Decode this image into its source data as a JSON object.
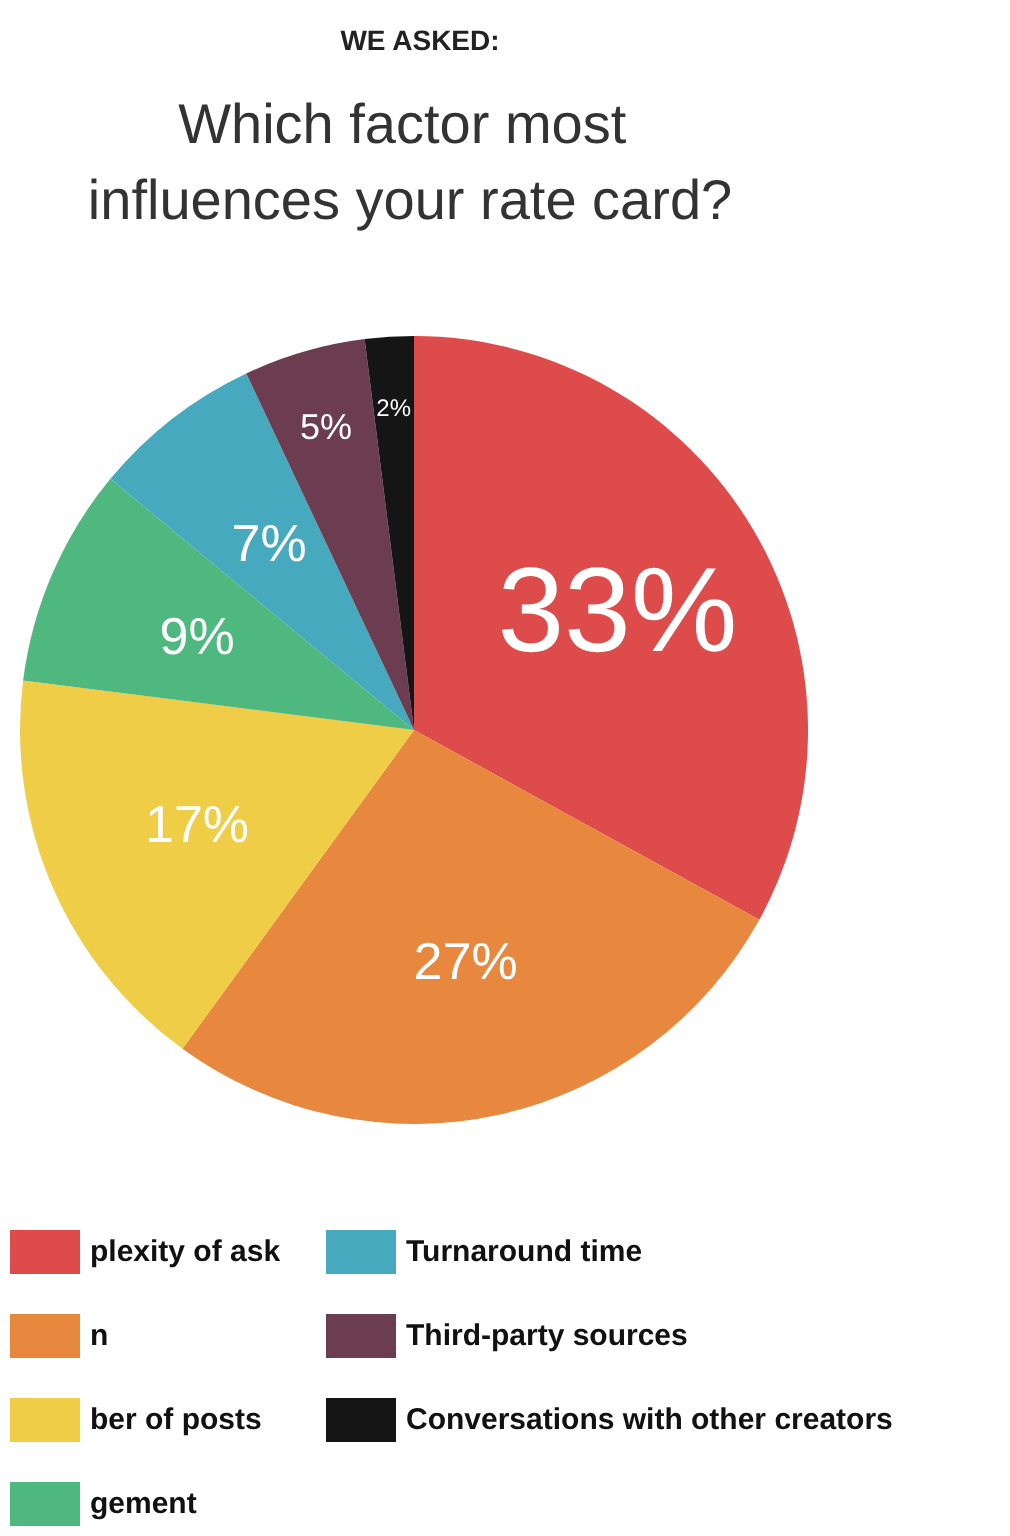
{
  "chart_data": {
    "type": "pie",
    "subtitle": "WE ASKED:",
    "title": "Which factor most influences your rate card?",
    "categories": [
      "plexity of ask",
      "n",
      "ber of posts",
      "gement",
      "Turnaround time",
      "Third-party sources",
      "Conversations with other creators"
    ],
    "values": [
      33,
      27,
      17,
      9,
      7,
      5,
      2
    ],
    "colors": [
      "#dd4b4b",
      "#e8883f",
      "#f0cd47",
      "#4eb87e",
      "#47a9bd",
      "#6c3d50",
      "#151515"
    ],
    "value_labels": [
      "33%",
      "27%",
      "17%",
      "9%",
      "7%",
      "5%",
      "2%"
    ],
    "data_labels": true,
    "legend": "bottom"
  }
}
